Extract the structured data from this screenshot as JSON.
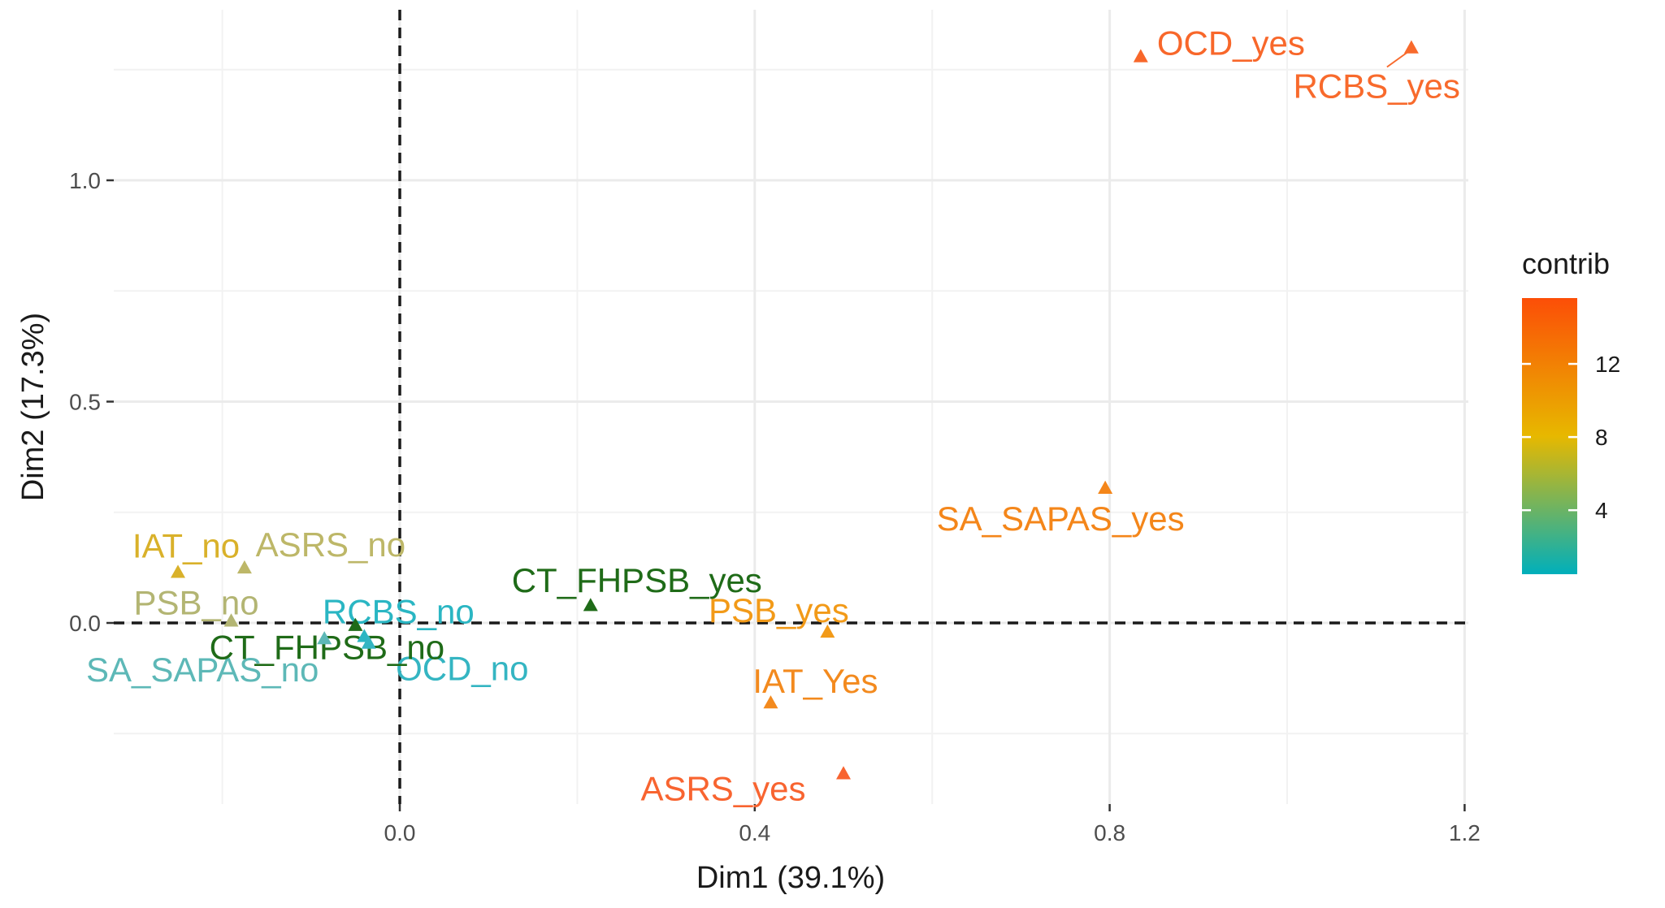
{
  "chart_data": {
    "type": "scatter",
    "title": "",
    "xlabel": "Dim1 (39.1%)",
    "ylabel": "Dim2 (17.3%)",
    "xlim": [
      -0.2,
      1.2
    ],
    "ylim": [
      -0.42,
      1.38
    ],
    "x_ticks": [
      {
        "value": 0.0,
        "label": "0.0"
      },
      {
        "value": 0.4,
        "label": "0.4"
      },
      {
        "value": 0.8,
        "label": "0.8"
      },
      {
        "value": 1.2,
        "label": "1.2"
      }
    ],
    "y_ticks": [
      {
        "value": 0.0,
        "label": "0.0"
      },
      {
        "value": 0.5,
        "label": "0.5"
      },
      {
        "value": 1.0,
        "label": "1.0"
      }
    ],
    "grid": true,
    "reference_lines": {
      "x": 0,
      "y": 0,
      "style": "dashed"
    },
    "legend": {
      "title": "contrib",
      "position": "right",
      "type": "colorbar",
      "range": [
        0.5,
        15.6
      ],
      "ticks": [
        {
          "value": 4,
          "label": "4"
        },
        {
          "value": 8,
          "label": "8"
        },
        {
          "value": 12,
          "label": "12"
        }
      ],
      "colors": [
        "#00AFBB",
        "#E7B800",
        "#FC4E07"
      ]
    },
    "points": [
      {
        "label": "OCD_yes",
        "x": 0.835,
        "y": 1.28,
        "contrib": 14.8,
        "color": "#F8672A"
      },
      {
        "label": "RCBS_yes",
        "x": 1.14,
        "y": 1.3,
        "contrib": 14.5,
        "color": "#F86A2C"
      },
      {
        "label": "SA_SAPAS_yes",
        "x": 0.795,
        "y": 0.305,
        "contrib": 11.3,
        "color": "#F4861A"
      },
      {
        "label": "PSB_yes",
        "x": 0.482,
        "y": -0.02,
        "contrib": 10.6,
        "color": "#F29A18"
      },
      {
        "label": "IAT_Yes",
        "x": 0.418,
        "y": -0.18,
        "contrib": 10.9,
        "color": "#F38A1E"
      },
      {
        "label": "ASRS_yes",
        "x": 0.5,
        "y": -0.34,
        "contrib": 13.5,
        "color": "#F86430"
      },
      {
        "label": "CT_FHPSB_yes",
        "x": 0.215,
        "y": 0.04,
        "contrib": 2.0,
        "color": "#1F6B18"
      },
      {
        "label": "IAT_no",
        "x": -0.25,
        "y": 0.115,
        "contrib": 7.0,
        "color": "#D9B12A"
      },
      {
        "label": "ASRS_no",
        "x": -0.175,
        "y": 0.125,
        "contrib": 4.8,
        "color": "#BDB768"
      },
      {
        "label": "PSB_no",
        "x": -0.19,
        "y": 0.005,
        "contrib": 4.2,
        "color": "#B3B573"
      },
      {
        "label": "RCBS_no",
        "x": -0.04,
        "y": -0.03,
        "contrib": 1.2,
        "color": "#2AB6C3"
      },
      {
        "label": "OCD_no",
        "x": -0.035,
        "y": -0.045,
        "contrib": 1.3,
        "color": "#34B5C2"
      },
      {
        "label": "SA_SAPAS_no",
        "x": -0.085,
        "y": -0.035,
        "contrib": 2.0,
        "color": "#5DB8B7"
      },
      {
        "label": "CT_FHPSB_no",
        "x": -0.05,
        "y": -0.005,
        "contrib": 1.8,
        "color": "#1F6B18"
      }
    ]
  }
}
